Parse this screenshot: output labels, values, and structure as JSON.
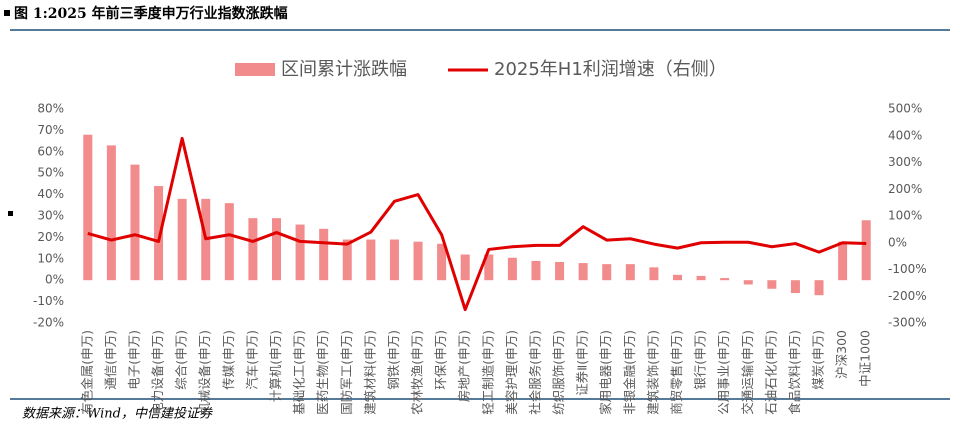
{
  "chart_data": {
    "type": "bar_line",
    "title": "图 1:2025 年前三季度申万行业指数涨跌幅",
    "source": "数据来源：Wind，中信建投证券",
    "categories": [
      "有色金属(申万)",
      "通信(申万)",
      "电子(申万)",
      "电力设备(申万)",
      "综合(申万)",
      "机械设备(申万)",
      "传媒(申万)",
      "汽车(申万)",
      "计算机(申万)",
      "基础化工(申万)",
      "医药生物(申万)",
      "国防军工(申万)",
      "建筑材料(申万)",
      "钢铁(申万)",
      "农林牧渔(申万)",
      "环保(申万)",
      "房地产(申万)",
      "轻工制造(申万)",
      "美容护理(申万)",
      "社会服务(申万)",
      "纺织服饰(申万)",
      "证券Ⅱ(申万)",
      "家用电器(申万)",
      "非银金融(申万)",
      "建筑装饰(申万)",
      "商贸零售(申万)",
      "银行(申万)",
      "公用事业(申万)",
      "交通运输(申万)",
      "石油石化(申万)",
      "食品饮料(申万)",
      "煤炭(申万)",
      "沪深300",
      "中证1000"
    ],
    "series": [
      {
        "name": "区间累计涨跌幅",
        "type": "bar",
        "color": "#f28b8b",
        "values": [
          68,
          63,
          54,
          44,
          38,
          38,
          36,
          29,
          29,
          26,
          24,
          19,
          19,
          19,
          18,
          17,
          12,
          12,
          10.5,
          9,
          8.5,
          8,
          7.5,
          7.5,
          6,
          2.5,
          2,
          1,
          -2,
          -4,
          -6,
          -7,
          18,
          28
        ]
      },
      {
        "name": "2025年H1利润增速（右侧）",
        "type": "line",
        "axis": "y2",
        "color": "#e00000",
        "values": [
          35,
          10,
          30,
          5,
          390,
          15,
          30,
          5,
          38,
          5,
          0,
          -5,
          40,
          155,
          180,
          30,
          -250,
          -25,
          -15,
          -10,
          -10,
          60,
          10,
          15,
          -5,
          -20,
          0,
          2,
          2,
          -15,
          -3,
          -35,
          0,
          -3
        ]
      }
    ],
    "ylim": [
      -20,
      80
    ],
    "yticks": [
      {
        "value": -20,
        "label": "-20%"
      },
      {
        "value": -10,
        "label": "-10%"
      },
      {
        "value": 0,
        "label": "0%"
      },
      {
        "value": 10,
        "label": "10%"
      },
      {
        "value": 20,
        "label": "20%"
      },
      {
        "value": 30,
        "label": "30%"
      },
      {
        "value": 40,
        "label": "40%"
      },
      {
        "value": 50,
        "label": "50%"
      },
      {
        "value": 60,
        "label": "60%"
      },
      {
        "value": 70,
        "label": "70%"
      },
      {
        "value": 80,
        "label": "80%"
      }
    ],
    "y2lim": [
      -300,
      500
    ],
    "y2ticks": [
      {
        "value": -300,
        "label": "-300%"
      },
      {
        "value": -200,
        "label": "-200%"
      },
      {
        "value": -100,
        "label": "-100%"
      },
      {
        "value": 0,
        "label": "0%"
      },
      {
        "value": 100,
        "label": "100%"
      },
      {
        "value": 200,
        "label": "200%"
      },
      {
        "value": 300,
        "label": "300%"
      },
      {
        "value": 400,
        "label": "400%"
      },
      {
        "value": 500,
        "label": "500%"
      }
    ],
    "legend": "top"
  }
}
